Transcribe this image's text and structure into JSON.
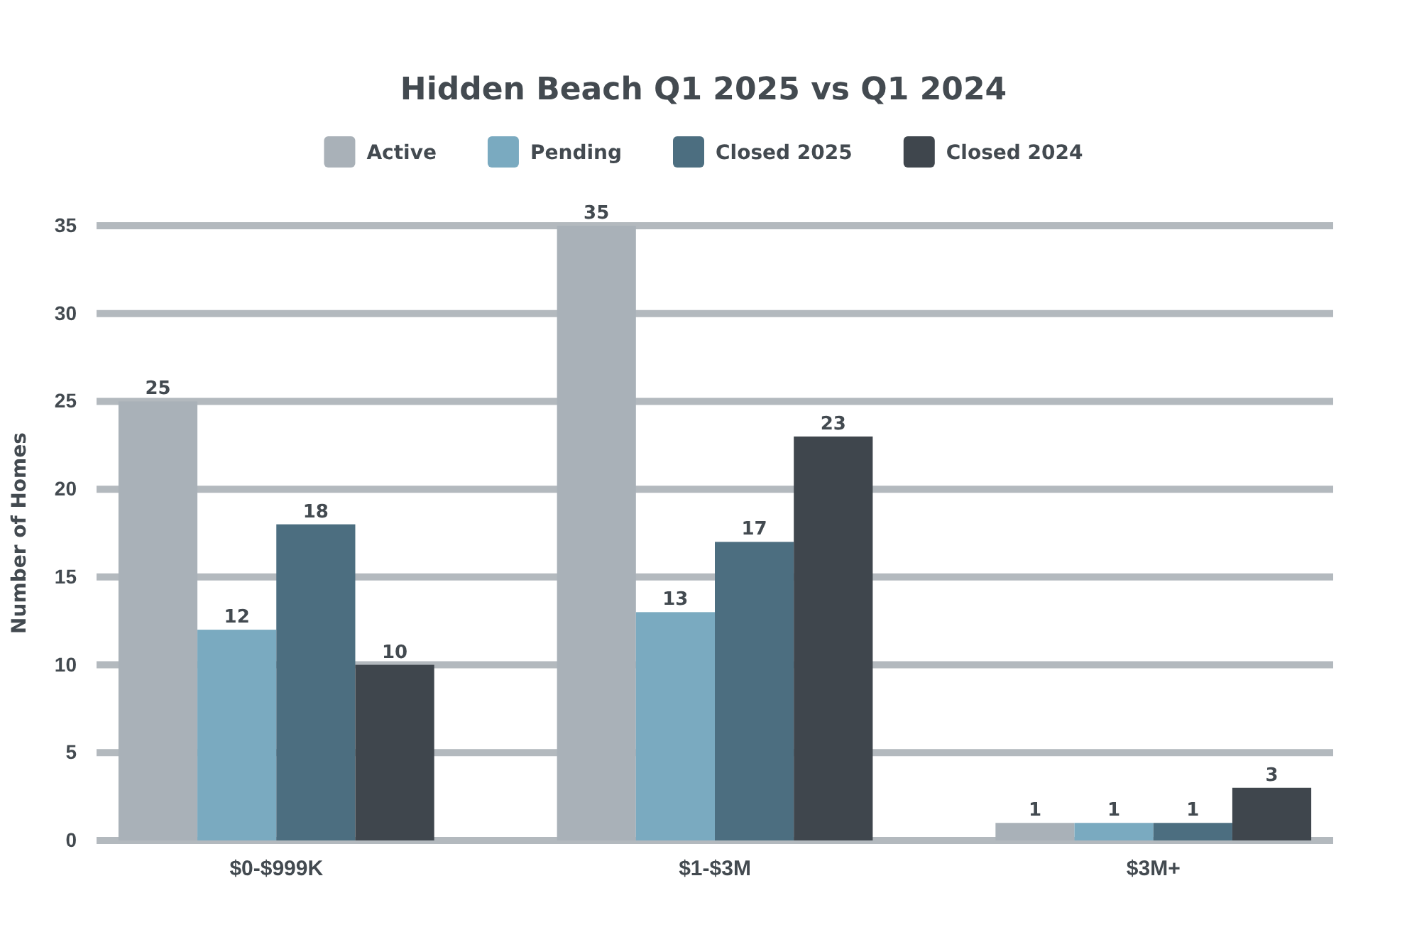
{
  "chart_data": {
    "type": "bar",
    "title": "Hidden Beach Q1 2025 vs Q1 2024",
    "ylabel": "Number of Homes",
    "categories": [
      "$0-$999K",
      "$1-$3M",
      "$3M+"
    ],
    "series": [
      {
        "name": "Active",
        "color": "#a9b1b8",
        "values": [
          25,
          35,
          1
        ]
      },
      {
        "name": "Pending",
        "color": "#7aaac0",
        "values": [
          12,
          13,
          1
        ]
      },
      {
        "name": "Closed 2025",
        "color": "#4c6e80",
        "values": [
          18,
          17,
          1
        ]
      },
      {
        "name": "Closed 2024",
        "color": "#3f464d",
        "values": [
          10,
          23,
          3
        ]
      }
    ],
    "ylim": [
      0,
      35
    ],
    "yticks": [
      0,
      5,
      10,
      15,
      20,
      25,
      30,
      35
    ],
    "grid": "y",
    "legend": "top",
    "data_labels": true
  }
}
